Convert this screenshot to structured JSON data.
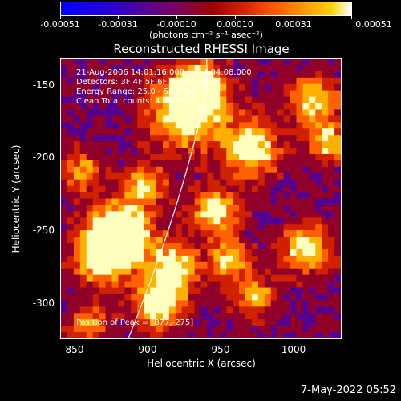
{
  "colorbar": {
    "labels": [
      "-0.00051",
      "-0.00031",
      "-0.00010",
      "0.00010",
      "0.00031",
      "0.00051"
    ],
    "unit": "(photons cm⁻² s⁻¹ asec⁻²)"
  },
  "chart_data": {
    "type": "heatmap",
    "title": "Reconstructed RHESSI Image",
    "xlabel": "Heliocentric X (arcsec)",
    "ylabel": "Heliocentric Y (arcsec)",
    "xlim": [
      840,
      1032
    ],
    "ylim": [
      -325,
      -133
    ],
    "x_ticks": [
      "850",
      "900",
      "950",
      "1000"
    ],
    "x_tick_values": [
      850,
      900,
      950,
      1000
    ],
    "y_ticks": [
      "-150",
      "-200",
      "-250",
      "-300"
    ],
    "y_tick_values": [
      -150,
      -200,
      -250,
      -300
    ],
    "colorbar_range": [
      -0.00051,
      0.00051
    ],
    "peak_position": [
      877,
      -275
    ]
  },
  "info": {
    "line1": "21-Aug-2006 14:01:16.000 to 14:04:08.000",
    "line2": "Detectors: 3F 4F 5F 6F 7F 8F, Att 0",
    "line3": "Energy Range: 25.0 - 50.0 keV",
    "line4": "Clean     Total counts: 4.93e+03",
    "peak": "Position of Peak = [877,-275]"
  },
  "footer": "7-May-2022 05:52"
}
